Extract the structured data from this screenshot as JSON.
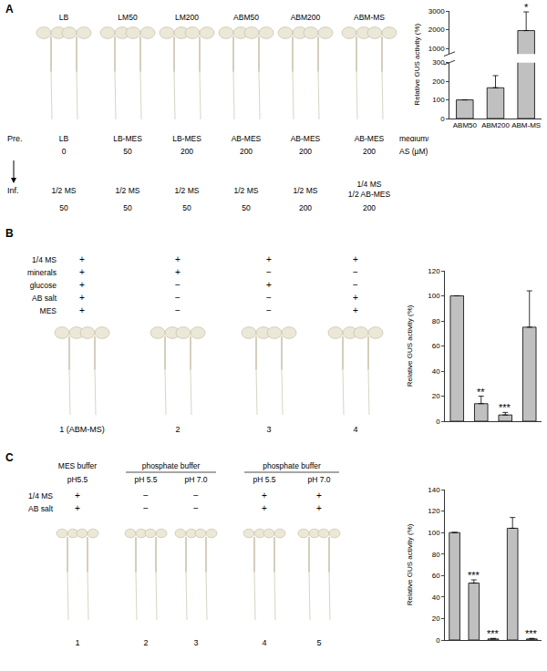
{
  "chart_data": [
    {
      "type": "bar",
      "categories": [
        "ABM50",
        "ABM200",
        "ABM-MS"
      ],
      "values": [
        100,
        165,
        1950
      ],
      "errors": [
        null,
        65,
        1000
      ],
      "significance": [
        null,
        null,
        "*"
      ],
      "color": "#c0c0c0",
      "ylabel": "Relative GUS activity (%)",
      "ylim": [
        0,
        3000
      ],
      "axis_break": [
        300,
        700
      ],
      "yticks": [
        0,
        100,
        200,
        300,
        1000,
        2000,
        3000
      ],
      "grid": false
    },
    {
      "type": "bar",
      "categories": [
        null,
        null,
        null,
        null
      ],
      "values": [
        100,
        14,
        5,
        75
      ],
      "errors": [
        null,
        6,
        2,
        29
      ],
      "significance": [
        null,
        "**",
        "***",
        null
      ],
      "color": "#c0c0c0",
      "ylabel": "Relative GUS activity (%)",
      "ylim": [
        0,
        120
      ],
      "yticks": [
        0,
        20,
        40,
        60,
        80,
        100,
        120
      ],
      "grid": false,
      "tick_labels": "y"
    },
    {
      "type": "bar",
      "categories": [
        null,
        null,
        null,
        null,
        null
      ],
      "values": [
        100,
        53,
        1,
        104,
        1
      ],
      "errors": [
        null,
        3,
        0.5,
        10,
        0.5
      ],
      "significance": [
        null,
        "***",
        "***",
        null,
        "***"
      ],
      "color": "#c0c0c0",
      "ylabel": "Relative GUS activity (%)",
      "ylim": [
        0,
        140
      ],
      "yticks": [
        0,
        20,
        40,
        60,
        80,
        100,
        120,
        140
      ],
      "grid": false,
      "tick_labels": "y"
    }
  ],
  "panels": [
    {
      "label": "A",
      "photo_labels": [
        "LB",
        "LM50",
        "LM200",
        "ABM50",
        "ABM200",
        "ABM-MS"
      ],
      "rows": [
        {
          "label": "Pre.",
          "medium": [
            "LB",
            "LB-MES",
            "LB-MES",
            "AB-MES",
            "AB-MES",
            "AB-MES"
          ],
          "as": [
            "0",
            "50",
            "200",
            "200",
            "200",
            "200"
          ]
        },
        {
          "label": "Inf.",
          "medium": [
            "1/2 MS",
            "1/2 MS",
            "1/2 MS",
            "1/2 MS",
            "1/2 MS",
            [
              "1/4 MS",
              "1/2 AB-MES"
            ]
          ],
          "as": [
            "50",
            "50",
            "50",
            "50",
            "200",
            "200"
          ]
        }
      ],
      "row_note": [
        "medium/",
        "AS (µM)"
      ]
    },
    {
      "label": "B",
      "photo_labels": [
        "1 (ABM-MS)",
        "2",
        "3",
        "4"
      ],
      "rows": [
        {
          "label": "1/4 MS",
          "marks": [
            "+",
            "+",
            "+",
            "+"
          ]
        },
        {
          "label": "minerals",
          "marks": [
            "+",
            "+",
            "−",
            "−"
          ]
        },
        {
          "label": "glucose",
          "marks": [
            "+",
            "−",
            "+",
            "−"
          ]
        },
        {
          "label": "AB salt",
          "marks": [
            "+",
            "−",
            "−",
            "+"
          ]
        },
        {
          "label": "MES",
          "marks": [
            "+",
            "−",
            "−",
            "+"
          ]
        }
      ]
    },
    {
      "label": "C",
      "photo_labels": [
        "1",
        "2",
        "3",
        "4",
        "5"
      ],
      "buffers": [
        {
          "text": "MES buffer",
          "columns": [
            0
          ]
        },
        {
          "text": "phosphate buffer",
          "columns": [
            1,
            2
          ]
        },
        {
          "text": "phosphate buffer",
          "columns": [
            3,
            4
          ]
        }
      ],
      "ph": [
        "pH5.5",
        "pH 5.5",
        "pH 7.0",
        "pH 5.5",
        "pH 7.0"
      ],
      "rows": [
        {
          "label": "1/4 MS",
          "marks": [
            "+",
            "−",
            "−",
            "+",
            "+"
          ]
        },
        {
          "label": "AB salt",
          "marks": [
            "+",
            "−",
            "−",
            "+",
            "+"
          ]
        }
      ]
    }
  ]
}
